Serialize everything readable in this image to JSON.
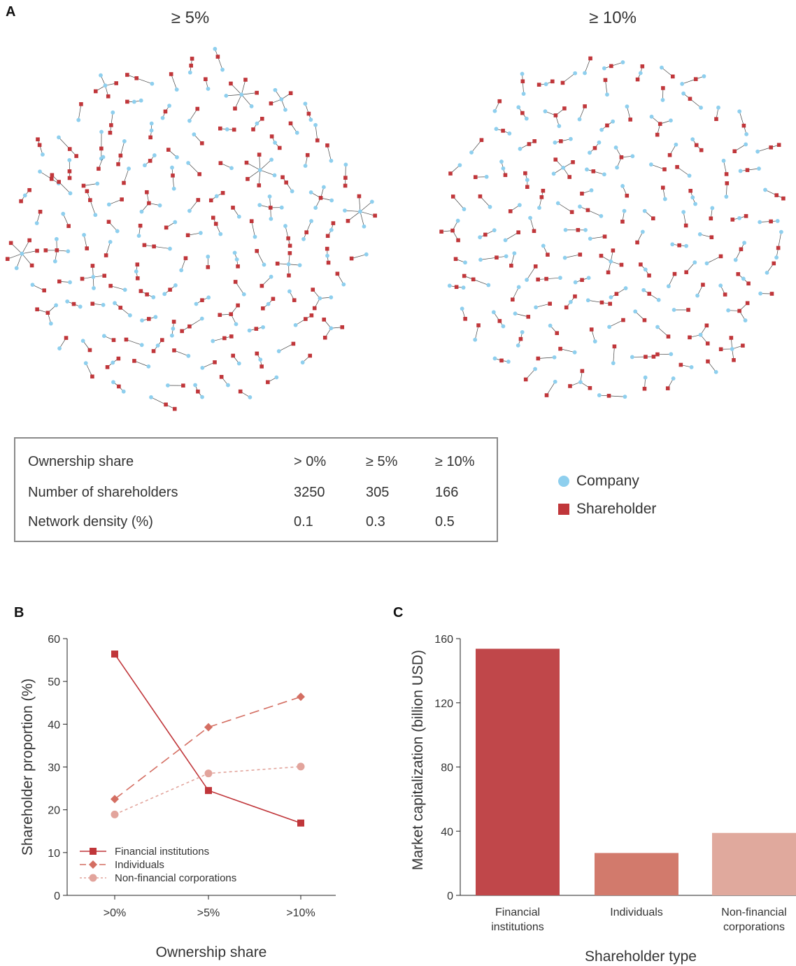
{
  "panels": {
    "a": "A",
    "b": "B",
    "c": "C"
  },
  "networks": [
    {
      "title": "≥ 5%",
      "pattern": "dense-ownership-network",
      "layout": "circular"
    },
    {
      "title": "≥ 10%",
      "pattern": "sparse-ownership-network",
      "layout": "circular"
    }
  ],
  "table": {
    "headers": [
      "Ownership share",
      "> 0%",
      "≥ 5%",
      "≥ 10%"
    ],
    "rows": [
      [
        "Number of shareholders",
        "3250",
        "305",
        "166"
      ],
      [
        "Network density (%)",
        "0.1",
        "0.3",
        "0.5"
      ]
    ]
  },
  "legend": {
    "company_label": "Company",
    "shareholder_label": "Shareholder",
    "company_color": "#8ecfee",
    "shareholder_color": "#c0363a",
    "company_icon": "circle",
    "shareholder_icon": "square"
  },
  "chart_data": [
    {
      "type": "line",
      "xlabel": "Ownership share",
      "ylabel": "Shareholder proportion (%)",
      "categories": [
        ">0%",
        ">5%",
        ">10%"
      ],
      "ylim": [
        0,
        60
      ],
      "yticks": [
        0,
        10,
        20,
        30,
        40,
        50,
        60
      ],
      "legend_position": "bottom-left",
      "series": [
        {
          "name": "Financial institutions",
          "values": [
            56.4,
            24.5,
            16.9
          ],
          "color": "#c0363a",
          "marker": "square",
          "dash": "solid"
        },
        {
          "name": "Individuals",
          "values": [
            22.5,
            39.3,
            46.4
          ],
          "color": "#d46e62",
          "marker": "diamond",
          "dash": "dashed"
        },
        {
          "name": "Non-financial corporations",
          "values": [
            18.9,
            28.5,
            30.1
          ],
          "color": "#e2a49c",
          "marker": "circle",
          "dash": "dotted"
        }
      ]
    },
    {
      "type": "bar",
      "xlabel": "Shareholder type",
      "ylabel": "Market capitalization (billion USD)",
      "categories": [
        "Financial institutions",
        "Individuals",
        "Non-financial corporations"
      ],
      "category_lines": [
        [
          "Financial",
          "institutions"
        ],
        [
          "Individuals"
        ],
        [
          "Non-financial",
          "corporations"
        ]
      ],
      "values": [
        153.7,
        26.4,
        38.9
      ],
      "colors": [
        "#c0474a",
        "#d27a6c",
        "#e0a99d"
      ],
      "ylim": [
        0,
        160
      ],
      "yticks": [
        0,
        40,
        80,
        120,
        160
      ]
    }
  ]
}
